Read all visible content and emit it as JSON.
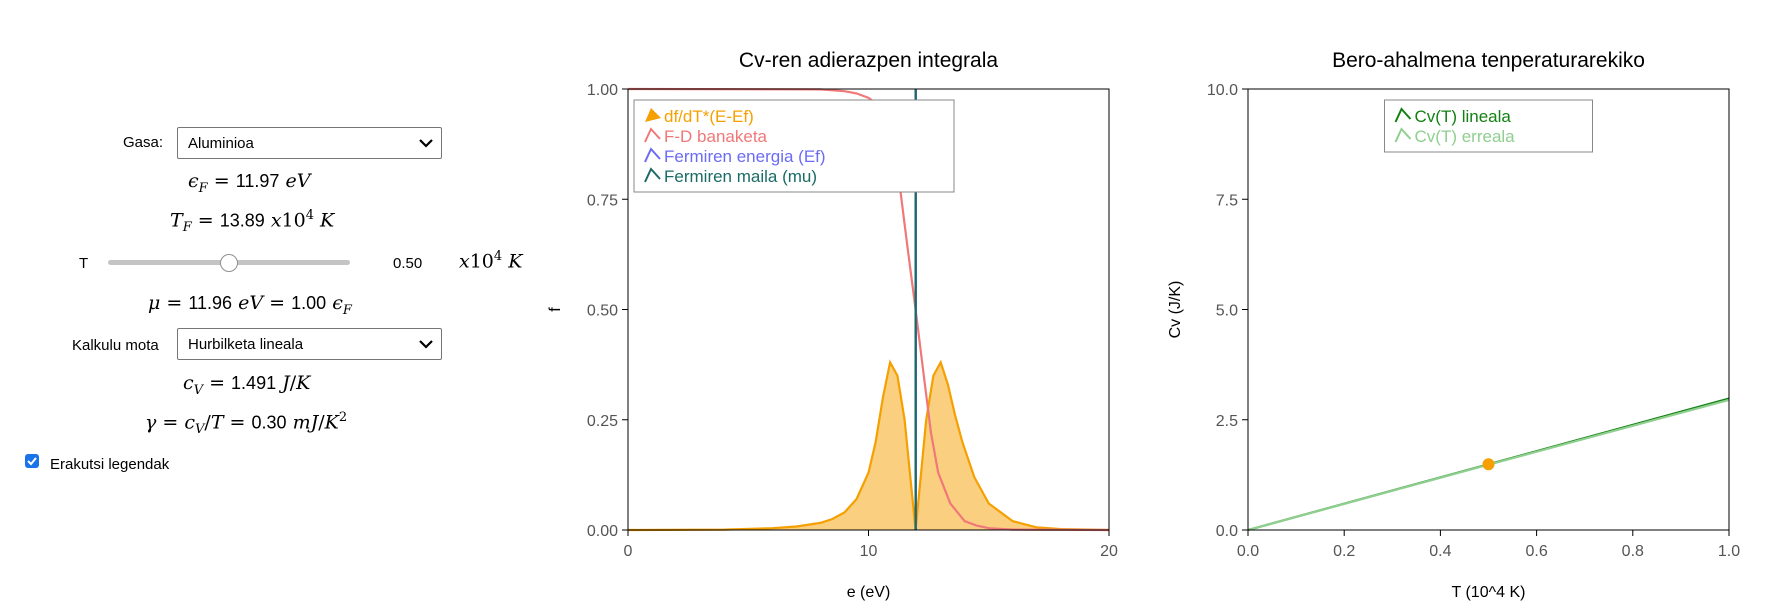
{
  "controls": {
    "gas_label": "Gasa:",
    "gas_value": "Aluminioa",
    "ef_value": "11.97",
    "ef_unit": "eV",
    "tf_value": "13.89",
    "t_label": "T",
    "t_value": "0.50",
    "t_fraction": 0.5,
    "mu_value": "11.96",
    "mu_ratio": "1.00",
    "calc_label": "Kalkulu mota",
    "calc_value": "Hurbilketa lineala",
    "cv_value": "1.491",
    "gamma_value": "0.30",
    "legend_checkbox_label": "Erakutsi legendak",
    "legend_checked": true
  },
  "colors": {
    "orange": "#f5a000",
    "red": "#f07878",
    "blue": "#6b6bf5",
    "teal": "#1a6b66",
    "green": "#138013",
    "lightgreen": "#8fcf8f"
  },
  "chart_data": [
    {
      "type": "line",
      "title": "Cv-ren adierazpen integrala",
      "xlabel": "e (eV)",
      "ylabel": "f",
      "xlim": [
        0,
        20
      ],
      "ylim": [
        0,
        1
      ],
      "xticks": [
        "0",
        "10",
        "20"
      ],
      "yticks": [
        "0.00",
        "0.25",
        "0.50",
        "0.75",
        "1.00"
      ],
      "legend_placement": "top-left",
      "series": [
        {
          "name": "df/dT*(E-Ef)",
          "color": "#f5a000",
          "x": [
            0,
            4,
            6,
            7,
            8,
            8.5,
            9,
            9.5,
            10,
            10.3,
            10.6,
            10.9,
            11.2,
            11.5,
            11.96,
            12.4,
            12.7,
            13.0,
            13.3,
            13.6,
            13.9,
            14.4,
            15,
            16,
            17,
            18,
            20
          ],
          "y": [
            0,
            0.001,
            0.004,
            0.008,
            0.016,
            0.025,
            0.04,
            0.07,
            0.13,
            0.2,
            0.3,
            0.38,
            0.35,
            0.25,
            0,
            0.25,
            0.35,
            0.38,
            0.33,
            0.26,
            0.2,
            0.12,
            0.06,
            0.02,
            0.006,
            0.002,
            0
          ]
        },
        {
          "name": "F-D banaketa",
          "color": "#f07878",
          "x": [
            0,
            8,
            9,
            9.5,
            10,
            10.5,
            11,
            11.3,
            11.6,
            11.96,
            12.3,
            12.6,
            12.9,
            13.4,
            14,
            14.5,
            15,
            16,
            20
          ],
          "y": [
            1,
            0.999,
            0.995,
            0.99,
            0.98,
            0.96,
            0.87,
            0.78,
            0.65,
            0.5,
            0.35,
            0.22,
            0.13,
            0.06,
            0.02,
            0.01,
            0.004,
            0.001,
            0
          ]
        },
        {
          "name": "Fermiren energia (Ef)",
          "color": "#6b6bf5",
          "x": [
            11.97,
            11.97
          ],
          "y": [
            0,
            1
          ]
        },
        {
          "name": "Fermiren maila (mu)",
          "color": "#1a6b66",
          "x": [
            11.96,
            11.96
          ],
          "y": [
            0,
            1
          ]
        }
      ]
    },
    {
      "type": "line",
      "title": "Bero-ahalmena tenperaturarekiko",
      "xlabel": "T (10^4 K)",
      "ylabel": "Cv (J/K)",
      "xlim": [
        0,
        1
      ],
      "ylim": [
        0,
        10
      ],
      "xticks": [
        "0.0",
        "0.2",
        "0.4",
        "0.6",
        "0.8",
        "1.0"
      ],
      "yticks": [
        "0.0",
        "2.5",
        "5.0",
        "7.5",
        "10.0"
      ],
      "legend_placement": "top-center",
      "series": [
        {
          "name": "Cv(T) lineala",
          "color": "#138013",
          "x": [
            0,
            1
          ],
          "y": [
            0,
            2.98
          ]
        },
        {
          "name": "Cv(T) erreala",
          "color": "#8fcf8f",
          "x": [
            0,
            0.5,
            1
          ],
          "y": [
            0,
            1.48,
            2.95
          ]
        }
      ],
      "marker": {
        "x": 0.5,
        "y": 1.491,
        "color": "#f5a000"
      }
    }
  ]
}
